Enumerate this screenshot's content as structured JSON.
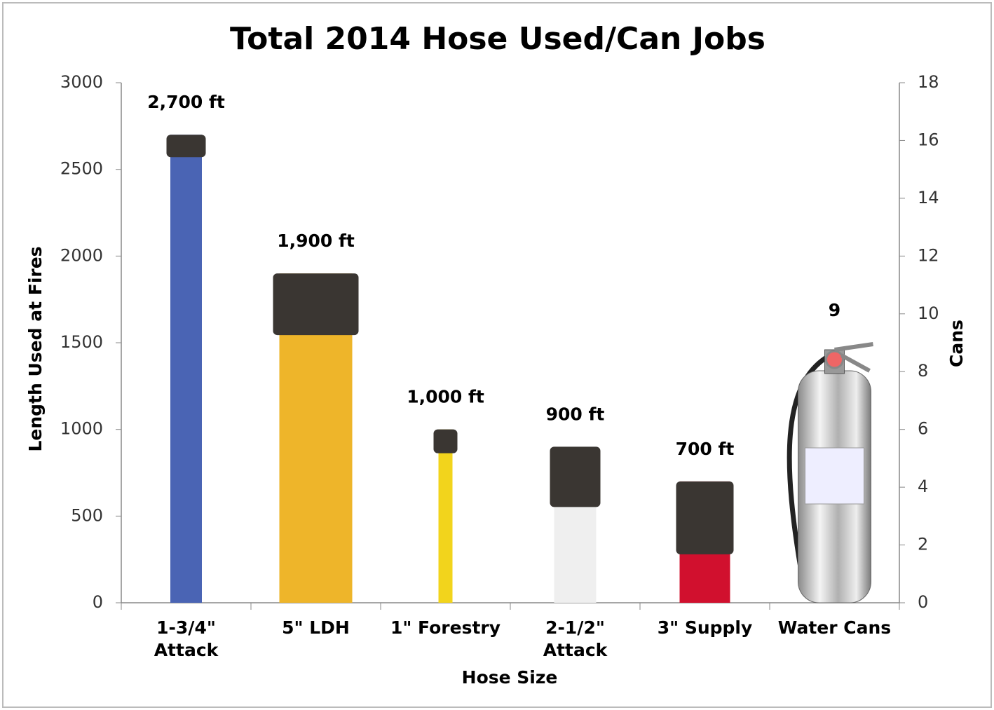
{
  "chart_data": {
    "type": "bar",
    "title": "Total 2014 Hose Used/Can Jobs",
    "x_label": "Hose Size",
    "y_label": "Length Used at Fires",
    "y2_label": "Cans",
    "categories": [
      [
        "1-3/4\"",
        "Attack"
      ],
      [
        "5\" LDH"
      ],
      [
        "1\" Forestry"
      ],
      [
        "2-1/2\"",
        "Attack"
      ],
      [
        "3\" Supply"
      ],
      [
        "Water Cans"
      ]
    ],
    "series": [
      {
        "colors": [
          "#4a64b4",
          "#eeb52a",
          "#f2d41c",
          "#efefef",
          "#d1102e",
          "#c8c8c8"
        ],
        "values": [
          2700,
          1900,
          1000,
          900,
          700,
          null
        ],
        "value_labels": [
          "2,700 ft",
          "1,900 ft",
          "1,000 ft",
          "900 ft",
          "700 ft",
          null
        ]
      },
      {
        "axis": "y2",
        "color": "#c8c8c8",
        "values": [
          null,
          null,
          null,
          null,
          null,
          9
        ]
      }
    ],
    "ylim": [
      0,
      3000
    ],
    "yticks": [
      0,
      500,
      1000,
      1500,
      2000,
      2500,
      3000
    ],
    "y2lim": [
      0,
      18
    ],
    "y2ticks": [
      0,
      2,
      4,
      6,
      8,
      10,
      12,
      14,
      16,
      18
    ],
    "grid": false
  }
}
